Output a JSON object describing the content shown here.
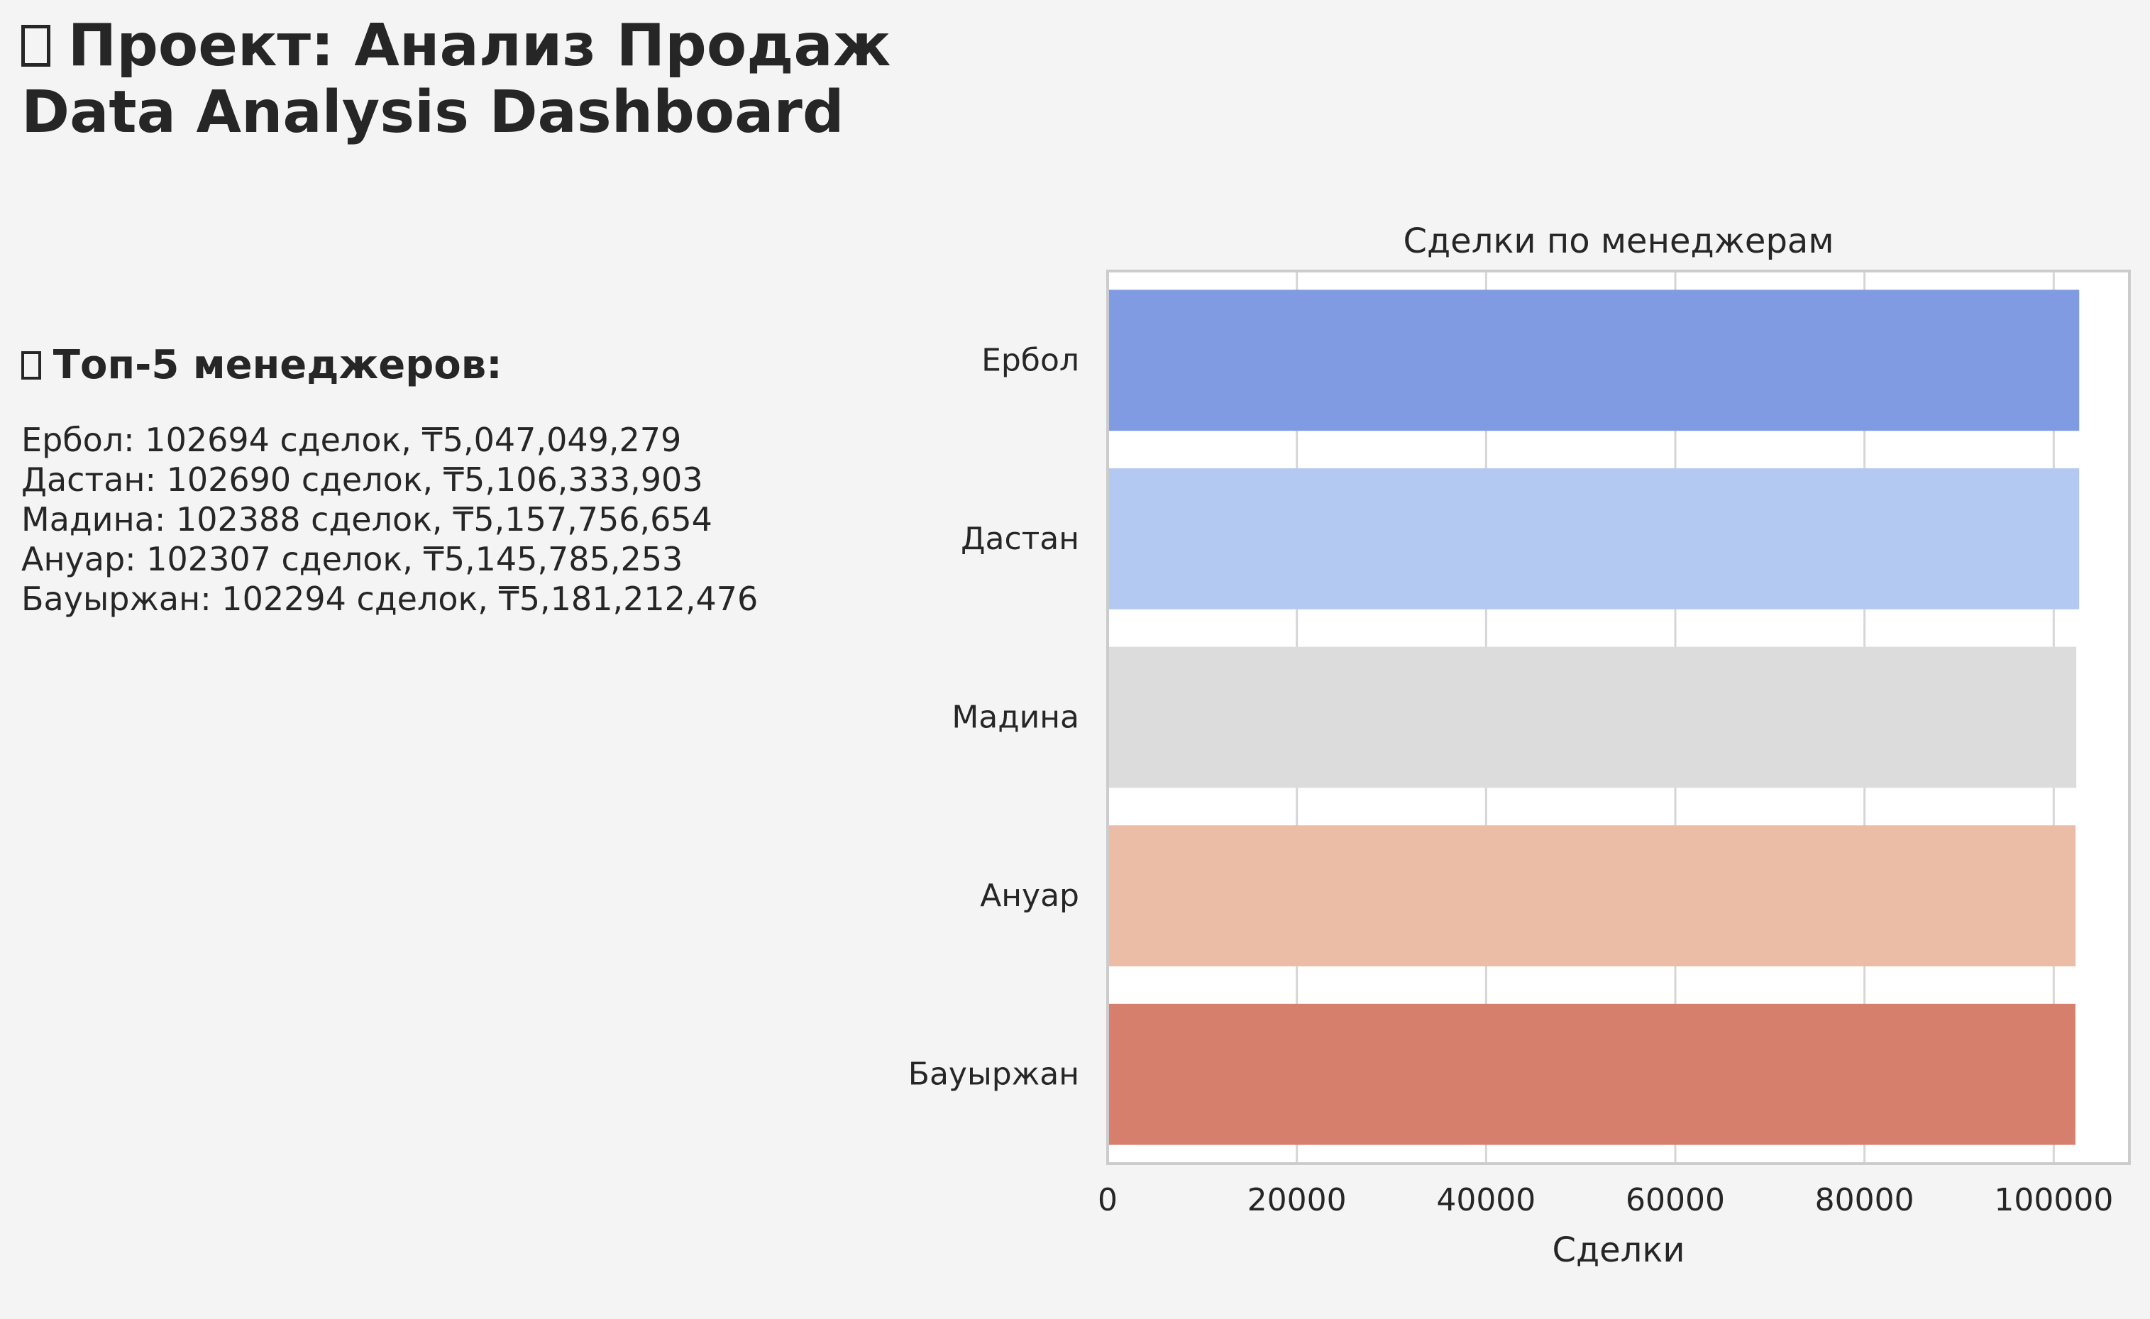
{
  "header": {
    "title_line1": "Проект: Анализ Продаж",
    "title_line2": "Data Analysis Dashboard",
    "title_icon": "missing-glyph-icon"
  },
  "summary": {
    "heading": "Топ-5 менеджеров:",
    "heading_icon": "missing-glyph-icon",
    "items": [
      "Ербол: 102694 сделок, ₸5,047,049,279",
      "Дастан: 102690 сделок, ₸5,106,333,903",
      "Мадина: 102388 сделок, ₸5,157,756,654",
      "Ануар: 102307 сделок, ₸5,145,785,253",
      "Бауыржан: 102294 сделок, ₸5,181,212,476"
    ]
  },
  "chart_data": {
    "type": "bar",
    "orientation": "horizontal",
    "title": "Сделки по менеджерам",
    "xlabel": "Сделки",
    "ylabel": "",
    "categories": [
      "Ербол",
      "Дастан",
      "Мадина",
      "Ануар",
      "Бауыржан"
    ],
    "values": [
      102694,
      102690,
      102388,
      102307,
      102294
    ],
    "colors": [
      "#819be3",
      "#b4c9f2",
      "#dcdcdc",
      "#ecbda6",
      "#d67f6d"
    ],
    "xlim": [
      0,
      108000
    ],
    "xticks": [
      0,
      20000,
      40000,
      60000,
      80000,
      100000
    ],
    "grid": "vertical"
  }
}
